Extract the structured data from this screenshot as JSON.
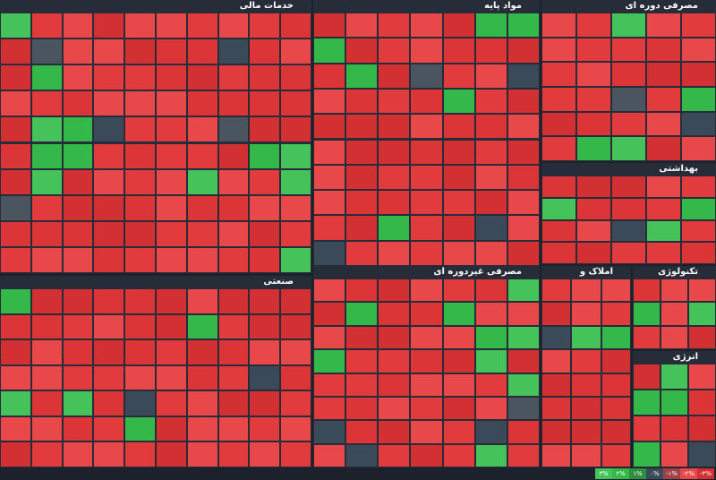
{
  "sectors": [
    {
      "title": "خدمات مالی"
    },
    {
      "title": "مواد پایه"
    },
    {
      "title": "مصرفی دوره ای"
    },
    {
      "title": "بهداشتی"
    },
    {
      "title": "صنعتی"
    },
    {
      "title": "مصرفی غیردوره ای"
    },
    {
      "title": "املاک و مستغلات"
    },
    {
      "title": "تکنولوژی"
    },
    {
      "title": "انرژی"
    }
  ],
  "legend": [
    "-۳%",
    "-۲%",
    "-۱%",
    "۰%",
    "۱%",
    "۲%",
    "۳%"
  ]
}
